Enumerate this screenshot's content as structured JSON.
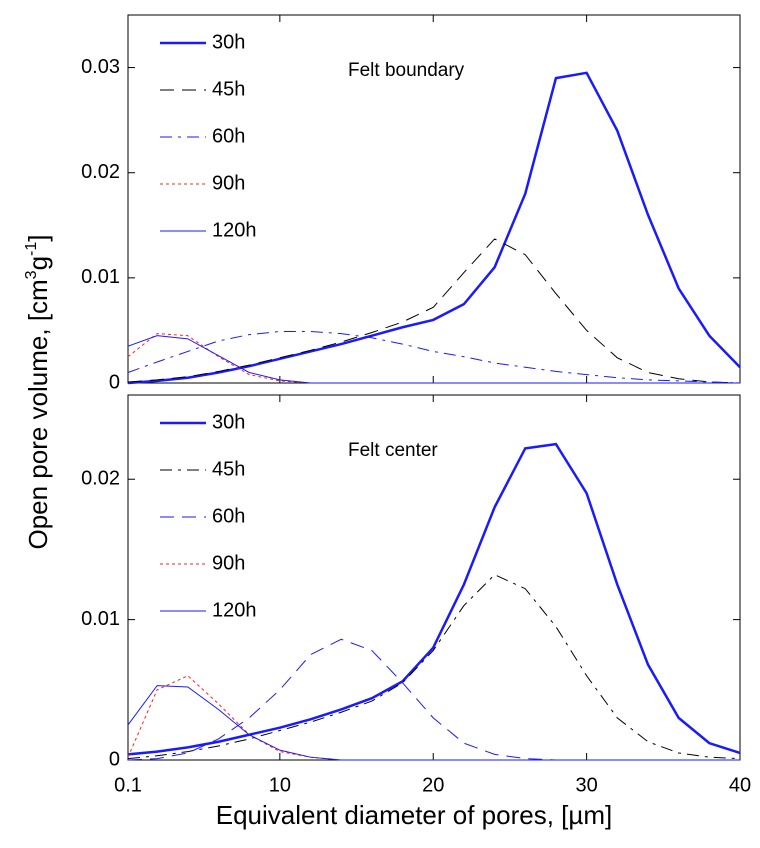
{
  "chart_data": [
    {
      "type": "line",
      "annotation": "Felt boundary",
      "ylabel": [
        "Open pore volume, [cm",
        "3",
        "g",
        "-1",
        "]"
      ],
      "x": [
        0.1,
        2,
        4,
        6,
        8,
        10,
        12,
        14,
        16,
        18,
        20,
        22,
        24,
        26,
        28,
        30,
        32,
        34,
        36,
        38,
        40
      ],
      "xlim": [
        0.1,
        40
      ],
      "xticks": [
        0.1,
        10,
        20,
        30,
        40
      ],
      "ylim": [
        0,
        0.035
      ],
      "yticks": [
        0,
        0.01,
        0.02,
        0.03
      ],
      "legend": "upper left",
      "series": [
        {
          "name": "30h",
          "color": "#1a1aff",
          "dash": "solid",
          "width": 2.5,
          "values": [
            0,
            0.0002,
            0.0005,
            0.001,
            0.0016,
            0.0023,
            0.003,
            0.0037,
            0.0045,
            0.0053,
            0.006,
            0.0075,
            0.011,
            0.018,
            0.029,
            0.0295,
            0.024,
            0.016,
            0.009,
            0.0045,
            0.0015
          ]
        },
        {
          "name": "45h",
          "color": "#000000",
          "dash": "dashed",
          "width": 1,
          "values": [
            0.0001,
            0.0003,
            0.0006,
            0.0011,
            0.0017,
            0.0024,
            0.0031,
            0.0039,
            0.0048,
            0.0058,
            0.0072,
            0.0105,
            0.0137,
            0.0122,
            0.0085,
            0.005,
            0.0024,
            0.001,
            0.0004,
            0.0001,
            0
          ]
        },
        {
          "name": "60h",
          "color": "#1a1aff",
          "dash": "dashdot",
          "width": 1,
          "values": [
            0.001,
            0.002,
            0.003,
            0.004,
            0.0046,
            0.0049,
            0.0049,
            0.0047,
            0.0043,
            0.0037,
            0.003,
            0.0025,
            0.0019,
            0.0015,
            0.0011,
            0.0008,
            0.0005,
            0.0003,
            0.0002,
            0.0001,
            0
          ]
        },
        {
          "name": "90h",
          "color": "#ff2020",
          "dash": "dotted",
          "width": 1,
          "values": [
            0.0025,
            0.0047,
            0.0045,
            0.0025,
            0.0008,
            0.0002,
            0,
            0,
            0,
            0,
            0,
            0,
            0,
            0,
            0,
            0,
            0,
            0,
            0,
            0,
            0
          ]
        },
        {
          "name": "120h",
          "color": "#1a1aff",
          "dash": "solid",
          "width": 1,
          "values": [
            0.0035,
            0.0045,
            0.0042,
            0.0026,
            0.001,
            0.0003,
            0,
            0,
            0,
            0,
            0,
            0,
            0,
            0,
            0,
            0,
            0,
            0,
            0,
            0,
            0
          ]
        }
      ]
    },
    {
      "type": "line",
      "annotation": "Felt center",
      "xlabel": "Equivalent diameter of pores, [µm]",
      "x": [
        0.1,
        2,
        4,
        6,
        8,
        10,
        12,
        14,
        16,
        18,
        20,
        22,
        24,
        26,
        28,
        30,
        32,
        34,
        36,
        38,
        40
      ],
      "xlim": [
        0.1,
        40
      ],
      "xticks": [
        0.1,
        10,
        20,
        30,
        40
      ],
      "ylim": [
        0,
        0.026
      ],
      "yticks": [
        0,
        0.01,
        0.02
      ],
      "legend": "upper left",
      "series": [
        {
          "name": "30h",
          "color": "#1a1aff",
          "dash": "solid",
          "width": 2.5,
          "values": [
            0.0004,
            0.0006,
            0.0009,
            0.0013,
            0.0018,
            0.0023,
            0.0029,
            0.0036,
            0.0044,
            0.0056,
            0.008,
            0.0125,
            0.018,
            0.0222,
            0.0225,
            0.019,
            0.0125,
            0.0068,
            0.003,
            0.0012,
            0.0005
          ]
        },
        {
          "name": "45h",
          "color": "#000000",
          "dash": "dashdot",
          "width": 1,
          "values": [
            0.0001,
            0.0003,
            0.0006,
            0.001,
            0.0015,
            0.0021,
            0.0027,
            0.0034,
            0.0042,
            0.0055,
            0.0078,
            0.011,
            0.0132,
            0.0122,
            0.0095,
            0.006,
            0.003,
            0.0013,
            0.0005,
            0.0002,
            0.0001
          ]
        },
        {
          "name": "60h",
          "color": "#1a1aff",
          "dash": "dashed",
          "width": 1,
          "values": [
            0,
            0.0001,
            0.0005,
            0.0015,
            0.003,
            0.005,
            0.0075,
            0.0086,
            0.0078,
            0.0055,
            0.003,
            0.0012,
            0.0004,
            0.0001,
            0,
            0,
            0,
            0,
            0,
            0,
            0
          ]
        },
        {
          "name": "90h",
          "color": "#ff2020",
          "dash": "dotted",
          "width": 1,
          "values": [
            0.0002,
            0.005,
            0.006,
            0.004,
            0.0018,
            0.0006,
            0.0002,
            0,
            0,
            0,
            0,
            0,
            0,
            0,
            0,
            0,
            0,
            0,
            0,
            0,
            0
          ]
        },
        {
          "name": "120h",
          "color": "#1a1aff",
          "dash": "solid",
          "width": 1,
          "values": [
            0.0025,
            0.0053,
            0.0052,
            0.0036,
            0.0018,
            0.0007,
            0.0002,
            0,
            0,
            0,
            0,
            0,
            0,
            0,
            0,
            0,
            0,
            0,
            0,
            0,
            0
          ]
        }
      ]
    }
  ]
}
